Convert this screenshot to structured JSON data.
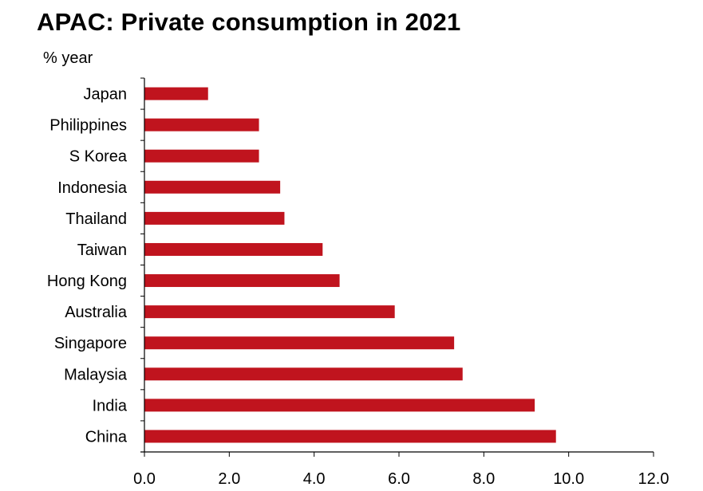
{
  "chart_data": {
    "type": "bar",
    "orientation": "horizontal",
    "title": "APAC: Private consumption in 2021",
    "ylabel": "% year",
    "xlabel": "",
    "categories": [
      "Japan",
      "Philippines",
      "S Korea",
      "Indonesia",
      "Thailand",
      "Taiwan",
      "Hong Kong",
      "Australia",
      "Singapore",
      "Malaysia",
      "India",
      "China"
    ],
    "values": [
      1.5,
      2.7,
      2.7,
      3.2,
      3.3,
      4.2,
      4.6,
      5.9,
      7.3,
      7.5,
      9.2,
      9.7
    ],
    "xlim": [
      0,
      12
    ],
    "xticks": [
      "0.0",
      "2.0",
      "4.0",
      "6.0",
      "8.0",
      "10.0",
      "12.0"
    ],
    "bar_color": "#c0141e",
    "grid": false,
    "legend": false
  }
}
